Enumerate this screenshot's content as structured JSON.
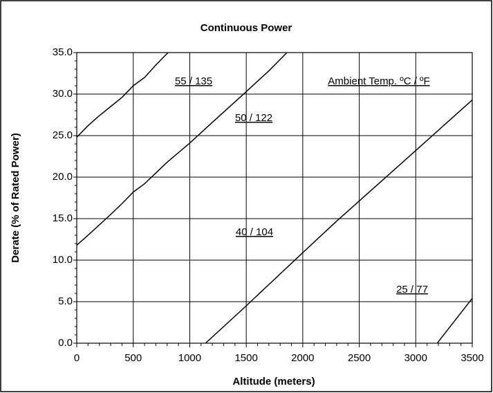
{
  "chart_data": {
    "type": "line",
    "title": "Continuous Power",
    "xlabel": "Altitude (meters)",
    "ylabel": "Derate (% of Rated Power)",
    "xlim": [
      0,
      3500
    ],
    "xticks": [
      0,
      500,
      1000,
      1500,
      2000,
      2500,
      3000,
      3500
    ],
    "ylim": [
      0,
      35
    ],
    "yticks": [
      {
        "value": 0,
        "label": "0.0"
      },
      {
        "value": 5,
        "label": "5.0"
      },
      {
        "value": 10,
        "label": "10.0"
      },
      {
        "value": 15,
        "label": "15.0"
      },
      {
        "value": 20,
        "label": "20.0"
      },
      {
        "value": 25,
        "label": "25.0"
      },
      {
        "value": 30,
        "label": "30.0"
      },
      {
        "value": 35,
        "label": "35.0"
      }
    ],
    "grid": true,
    "annotations": [
      "55 / 135",
      "50 / 122",
      "Ambient Temp. ºC / ºF",
      "40 / 104",
      "25 / 77"
    ],
    "series": [
      {
        "name": "55 / 135",
        "color": "#000000",
        "x": [
          0,
          100,
          200,
          300,
          400,
          500,
          600,
          700,
          808
        ],
        "values": [
          24.8,
          26.2,
          27.4,
          28.5,
          29.6,
          31.0,
          32.0,
          33.5,
          35
        ]
      },
      {
        "name": "50 / 122",
        "color": "#000000",
        "x": [
          0,
          116,
          300,
          400,
          500,
          600,
          800,
          1000,
          1200,
          1500,
          1700,
          1860
        ],
        "values": [
          11.8,
          13.2,
          15.5,
          16.8,
          18.2,
          19.2,
          21.8,
          24.1,
          26.6,
          30.3,
          32.8,
          35
        ]
      },
      {
        "name": "40 / 104",
        "color": "#000000",
        "x": [
          1140,
          1500,
          2000,
          2300,
          3000,
          3500
        ],
        "values": [
          0,
          4.5,
          10.9,
          14.7,
          23.2,
          29.3
        ]
      },
      {
        "name": "25 / 77",
        "color": "#000000",
        "x": [
          3190,
          3500
        ],
        "values": [
          0,
          5.4
        ]
      }
    ]
  }
}
